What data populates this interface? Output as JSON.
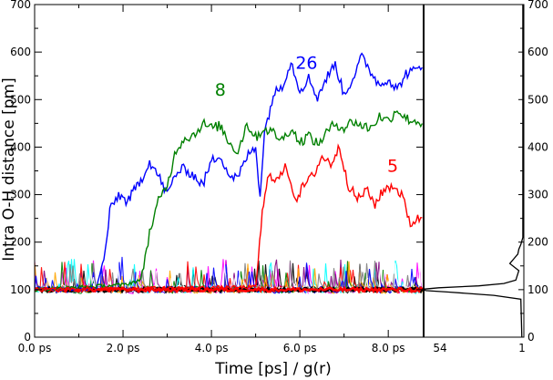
{
  "chart_data": {
    "type": "line",
    "xlabel": "Time [ps] / g(r)",
    "ylabel": "Intra O-H distance [pm]",
    "ylim": [
      0,
      700
    ],
    "xlim_ps": [
      0,
      8.8
    ],
    "y_ticks": [
      "0",
      "100",
      "200",
      "300",
      "400",
      "500",
      "600",
      "700"
    ],
    "x_ticks": [
      {
        "value": 0,
        "label": "0.0 ps"
      },
      {
        "value": 2,
        "label": "2.0 ps"
      },
      {
        "value": 4,
        "label": "4.0 ps"
      },
      {
        "value": 6,
        "label": "6.0 ps"
      },
      {
        "value": 8,
        "label": "8.0 ps"
      }
    ],
    "gr_ticks": [
      "54",
      "1"
    ],
    "series": [
      {
        "name": "26",
        "color": "#0000ff",
        "label_at": [
          6.15,
          565
        ],
        "points": [
          [
            0,
            100
          ],
          [
            1.4,
            102
          ],
          [
            1.6,
            180
          ],
          [
            1.7,
            265
          ],
          [
            1.9,
            300
          ],
          [
            2.1,
            285
          ],
          [
            2.4,
            330
          ],
          [
            2.6,
            370
          ],
          [
            2.8,
            340
          ],
          [
            3.0,
            300
          ],
          [
            3.2,
            345
          ],
          [
            3.4,
            355
          ],
          [
            3.6,
            340
          ],
          [
            3.8,
            320
          ],
          [
            4.0,
            370
          ],
          [
            4.2,
            385
          ],
          [
            4.4,
            340
          ],
          [
            4.6,
            335
          ],
          [
            4.8,
            380
          ],
          [
            5.0,
            400
          ],
          [
            5.1,
            300
          ],
          [
            5.2,
            430
          ],
          [
            5.4,
            510
          ],
          [
            5.6,
            530
          ],
          [
            5.8,
            580
          ],
          [
            6.0,
            520
          ],
          [
            6.2,
            545
          ],
          [
            6.4,
            505
          ],
          [
            6.6,
            545
          ],
          [
            6.8,
            575
          ],
          [
            7.0,
            510
          ],
          [
            7.2,
            545
          ],
          [
            7.4,
            590
          ],
          [
            7.6,
            560
          ],
          [
            7.8,
            530
          ],
          [
            8.0,
            545
          ],
          [
            8.2,
            520
          ],
          [
            8.4,
            555
          ],
          [
            8.6,
            560
          ],
          [
            8.8,
            575
          ]
        ]
      },
      {
        "name": "8",
        "color": "#008000",
        "label_at": [
          4.2,
          508
        ],
        "points": [
          [
            0,
            100
          ],
          [
            2.0,
            110
          ],
          [
            2.4,
            120
          ],
          [
            2.6,
            220
          ],
          [
            2.8,
            285
          ],
          [
            3.0,
            320
          ],
          [
            3.2,
            395
          ],
          [
            3.4,
            420
          ],
          [
            3.6,
            425
          ],
          [
            3.8,
            450
          ],
          [
            4.0,
            440
          ],
          [
            4.2,
            445
          ],
          [
            4.4,
            410
          ],
          [
            4.6,
            390
          ],
          [
            4.8,
            450
          ],
          [
            5.0,
            420
          ],
          [
            5.2,
            440
          ],
          [
            5.4,
            430
          ],
          [
            5.6,
            415
          ],
          [
            5.8,
            440
          ],
          [
            6.0,
            410
          ],
          [
            6.2,
            425
          ],
          [
            6.4,
            405
          ],
          [
            6.6,
            430
          ],
          [
            6.8,
            450
          ],
          [
            7.0,
            440
          ],
          [
            7.2,
            455
          ],
          [
            7.4,
            445
          ],
          [
            7.6,
            440
          ],
          [
            7.8,
            465
          ],
          [
            8.0,
            455
          ],
          [
            8.2,
            480
          ],
          [
            8.4,
            460
          ],
          [
            8.6,
            455
          ],
          [
            8.8,
            450
          ]
        ]
      },
      {
        "name": "5",
        "color": "#ff0000",
        "label_at": [
          8.1,
          348
        ],
        "points": [
          [
            0,
            100
          ],
          [
            5.0,
            105
          ],
          [
            5.15,
            260
          ],
          [
            5.3,
            345
          ],
          [
            5.5,
            330
          ],
          [
            5.7,
            360
          ],
          [
            5.9,
            290
          ],
          [
            6.1,
            320
          ],
          [
            6.3,
            340
          ],
          [
            6.5,
            380
          ],
          [
            6.7,
            365
          ],
          [
            6.9,
            400
          ],
          [
            7.1,
            320
          ],
          [
            7.3,
            290
          ],
          [
            7.5,
            310
          ],
          [
            7.7,
            280
          ],
          [
            7.9,
            310
          ],
          [
            8.1,
            320
          ],
          [
            8.3,
            300
          ],
          [
            8.5,
            240
          ],
          [
            8.7,
            250
          ],
          [
            8.8,
            250
          ]
        ]
      }
    ],
    "background_series_colors": [
      "#000000",
      "#ff00ff",
      "#00ffff",
      "#800080",
      "#ff0000",
      "#008000",
      "#ffa500",
      "#808080",
      "#0000ff",
      "#ffffff"
    ],
    "gr_profile": [
      [
        0,
        0.02
      ],
      [
        80,
        0.03
      ],
      [
        88,
        0.3
      ],
      [
        95,
        0.75
      ],
      [
        98,
        0.98
      ],
      [
        101,
        1.0
      ],
      [
        104,
        0.85
      ],
      [
        108,
        0.45
      ],
      [
        113,
        0.2
      ],
      [
        120,
        0.08
      ],
      [
        140,
        0.05
      ],
      [
        155,
        0.14
      ],
      [
        165,
        0.1
      ],
      [
        175,
        0.06
      ],
      [
        185,
        0.05
      ],
      [
        195,
        0.03
      ],
      [
        210,
        0.01
      ],
      [
        700,
        0.01
      ]
    ]
  }
}
